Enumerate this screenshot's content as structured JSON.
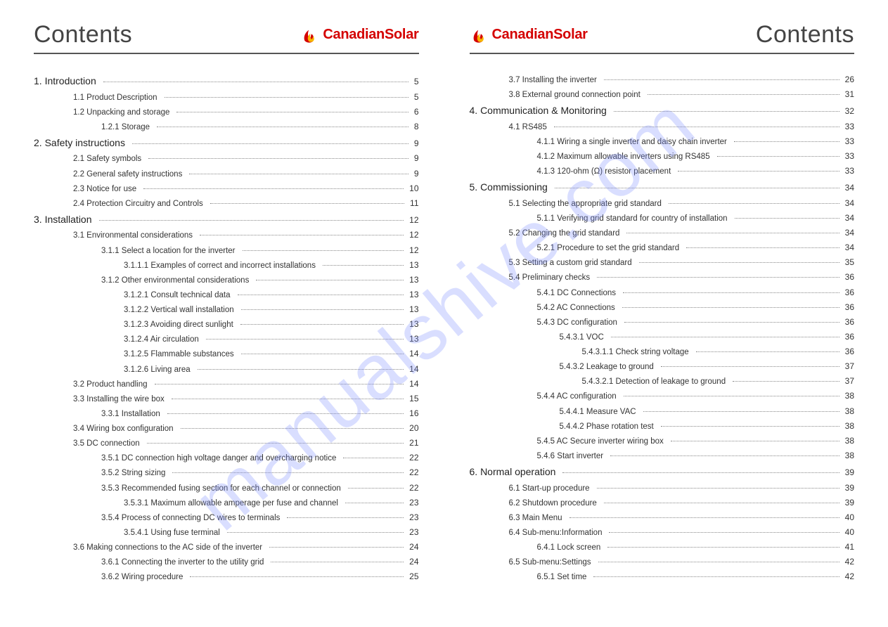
{
  "header": {
    "left_title": "Contents",
    "right_title": "Contents",
    "brand_text": "CanadianSolar",
    "brand_color": "#d40000",
    "icon_color_outer": "#d40000",
    "icon_color_inner": "#f7b500"
  },
  "watermark": "manualshive.com",
  "toc_left": [
    {
      "level": 0,
      "label": "1. Introduction",
      "page": "5"
    },
    {
      "level": 1,
      "label": "1.1 Product Description",
      "page": "5"
    },
    {
      "level": 1,
      "label": "1.2  Unpacking and storage",
      "page": "6"
    },
    {
      "level": 2,
      "label": "1.2.1 Storage",
      "page": "8"
    },
    {
      "level": 0,
      "label": "2. Safety instructions",
      "page": "9"
    },
    {
      "level": 1,
      "label": "2.1 Safety symbols",
      "page": "9"
    },
    {
      "level": 1,
      "label": "2.2 General safety instructions",
      "page": "9"
    },
    {
      "level": 1,
      "label": "2.3 Notice for use",
      "page": "10"
    },
    {
      "level": 1,
      "label": "2.4 Protection Circuitry and Controls",
      "page": "11"
    },
    {
      "level": 0,
      "label": "3. Installation",
      "page": "12"
    },
    {
      "level": 1,
      "label": "3.1 Environmental considerations",
      "page": "12"
    },
    {
      "level": 2,
      "label": "3.1.1 Select a location for the inverter",
      "page": "12"
    },
    {
      "level": 3,
      "label": "3.1.1.1 Examples of correct and incorrect installations",
      "page": "13"
    },
    {
      "level": 2,
      "label": "3.1.2 Other environmental considerations",
      "page": "13"
    },
    {
      "level": 3,
      "label": "3.1.2.1 Consult technical data",
      "page": "13"
    },
    {
      "level": 3,
      "label": "3.1.2.2 Vertical wall installation",
      "page": "13"
    },
    {
      "level": 3,
      "label": "3.1.2.3 Avoiding direct sunlight",
      "page": "13"
    },
    {
      "level": 3,
      "label": "3.1.2.4 Air circulation",
      "page": "13"
    },
    {
      "level": 3,
      "label": "3.1.2.5 Flammable substances",
      "page": "14"
    },
    {
      "level": 3,
      "label": "3.1.2.6 Living area",
      "page": "14"
    },
    {
      "level": 1,
      "label": "3.2 Product handling",
      "page": "14"
    },
    {
      "level": 1,
      "label": "3.3  Installing the wire box",
      "page": "15"
    },
    {
      "level": 2,
      "label": "3.3.1 Installation",
      "page": "16"
    },
    {
      "level": 1,
      "label": "3.4 Wiring box configuration",
      "page": "20"
    },
    {
      "level": 1,
      "label": "3.5 DC connection",
      "page": "21"
    },
    {
      "level": 2,
      "label": "3.5.1 DC connection high voltage danger and overcharging notice",
      "page": "22"
    },
    {
      "level": 2,
      "label": "3.5.2 String sizing",
      "page": "22"
    },
    {
      "level": 2,
      "label": "3.5.3 Recommended fusing section for each channel or connection",
      "page": "22"
    },
    {
      "level": 3,
      "label": "3.5.3.1 Maximum allowable amperage per fuse and channel",
      "page": "23"
    },
    {
      "level": 2,
      "label": "3.5.4 Process of connecting DC wires to terminals",
      "page": "23"
    },
    {
      "level": 3,
      "label": "3.5.4.1 Using fuse terminal",
      "page": "23"
    },
    {
      "level": 1,
      "label": "3.6 Making connections to the AC side of the inverter",
      "page": "24"
    },
    {
      "level": 2,
      "label": "3.6.1 Connecting the inverter to the utility grid",
      "page": "24"
    },
    {
      "level": 2,
      "label": "3.6.2 Wiring procedure",
      "page": "25"
    }
  ],
  "toc_right": [
    {
      "level": 1,
      "label": "3.7 Installing the inverter",
      "page": "26"
    },
    {
      "level": 1,
      "label": "3.8 External ground connection point",
      "page": "31"
    },
    {
      "level": 0,
      "label": "4. Communication & Monitoring",
      "page": "32"
    },
    {
      "level": 1,
      "label": "4.1 RS485",
      "page": "33"
    },
    {
      "level": 2,
      "label": "4.1.1 Wiring a single inverter and daisy chain inverter",
      "page": "33"
    },
    {
      "level": 2,
      "label": "4.1.2 Maximum allowable inverters using RS485",
      "page": "33"
    },
    {
      "level": 2,
      "label": "4.1.3 120-ohm (Ω) resistor placement",
      "page": "33"
    },
    {
      "level": 0,
      "label": "5. Commissioning",
      "page": "34"
    },
    {
      "level": 1,
      "label": "5.1 Selecting the appropriate grid standard",
      "page": "34"
    },
    {
      "level": 2,
      "label": "5.1.1 Verifying grid standard for country of installation",
      "page": "34"
    },
    {
      "level": 1,
      "label": "5.2 Changing the grid standard",
      "page": "34"
    },
    {
      "level": 2,
      "label": "5.2.1 Procedure to set the grid standard",
      "page": "34"
    },
    {
      "level": 1,
      "label": "5.3 Setting a custom grid standard",
      "page": "35"
    },
    {
      "level": 1,
      "label": "5.4 Preliminary checks",
      "page": "36"
    },
    {
      "level": 2,
      "label": "5.4.1 DC Connections",
      "page": "36"
    },
    {
      "level": 2,
      "label": "5.4.2 AC Connections",
      "page": "36"
    },
    {
      "level": 2,
      "label": "5.4.3 DC configuration",
      "page": "36"
    },
    {
      "level": 3,
      "label": "5.4.3.1 VOC",
      "page": "36"
    },
    {
      "level": 4,
      "label": "5.4.3.1.1 Check string voltage",
      "page": "36"
    },
    {
      "level": 3,
      "label": "5.4.3.2 Leakage to ground",
      "page": "37"
    },
    {
      "level": 4,
      "label": "5.4.3.2.1 Detection of leakage to ground",
      "page": "37"
    },
    {
      "level": 2,
      "label": "5.4.4 AC configuration",
      "page": "38"
    },
    {
      "level": 3,
      "label": "5.4.4.1 Measure VAC",
      "page": "38"
    },
    {
      "level": 3,
      "label": "5.4.4.2 Phase rotation test",
      "page": "38"
    },
    {
      "level": 2,
      "label": "5.4.5 AC Secure inverter wiring box",
      "page": "38"
    },
    {
      "level": 2,
      "label": "5.4.6 Start inverter",
      "page": "38"
    },
    {
      "level": 0,
      "label": "6. Normal operation",
      "page": "39"
    },
    {
      "level": 1,
      "label": "6.1 Start-up procedure",
      "page": "39"
    },
    {
      "level": 1,
      "label": "6.2 Shutdown procedure",
      "page": "39"
    },
    {
      "level": 1,
      "label": "6.3 Main Menu",
      "page": "40"
    },
    {
      "level": 1,
      "label": "6.4 Sub-menu:Information",
      "page": "40"
    },
    {
      "level": 2,
      "label": "6.4.1 Lock screen",
      "page": "41"
    },
    {
      "level": 1,
      "label": "6.5 Sub-menu:Settings",
      "page": "42"
    },
    {
      "level": 2,
      "label": "6.5.1 Set time",
      "page": "42"
    }
  ],
  "colors": {
    "title": "#444444",
    "text": "#333333",
    "rule": "#555555",
    "leader": "#888888",
    "watermark": "#7a8cff"
  }
}
